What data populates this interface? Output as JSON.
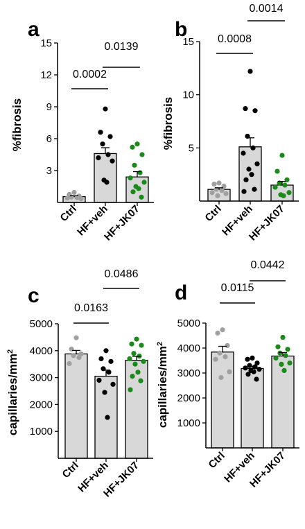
{
  "colors": {
    "bar_fill": "#d8d8d8",
    "axis": "#000000",
    "Ctrl": "#a0a0a0",
    "HF+veh": "#000000",
    "HF+JK07": "#1a8a1a"
  },
  "chart_data": [
    {
      "panel": "a",
      "type": "bar",
      "ylabel": "%fibrosis",
      "ylim": [
        0,
        15
      ],
      "yticks": [
        "3",
        "6",
        "9",
        "12",
        "15"
      ],
      "categories": [
        "Ctrl",
        "HF+veh",
        "HF+JK07"
      ],
      "means": [
        0.55,
        4.6,
        2.4
      ],
      "sem": [
        0.08,
        0.55,
        0.5
      ],
      "points": [
        [
          0.95,
          0.75,
          0.6,
          0.5,
          0.45,
          0.4,
          0.35
        ],
        [
          8.8,
          6.6,
          6.2,
          5.5,
          4.5,
          4.2,
          3.9,
          2.1,
          1.9
        ],
        [
          5.5,
          5.2,
          4.5,
          3.5,
          2.8,
          2.3,
          1.9,
          1.5,
          1.3,
          1.0,
          0.5
        ]
      ],
      "comparisons": [
        {
          "groups": [
            "Ctrl",
            "HF+veh"
          ],
          "p": "0.0002"
        },
        {
          "groups": [
            "HF+veh",
            "HF+JK07"
          ],
          "p": "0.0139"
        }
      ]
    },
    {
      "panel": "b",
      "type": "bar",
      "ylabel": "%fibrosis",
      "ylim": [
        0,
        15
      ],
      "yticks": [
        "5",
        "10",
        "15"
      ],
      "categories": [
        "Ctrl",
        "HF+veh",
        "HF+JK07"
      ],
      "means": [
        1.1,
        5.1,
        1.5
      ],
      "sem": [
        0.15,
        0.85,
        0.35
      ],
      "points": [
        [
          1.7,
          1.6,
          1.4,
          1.1,
          1.0,
          0.8,
          0.7,
          0.5
        ],
        [
          12.2,
          8.7,
          8.5,
          6.1,
          5.0,
          4.5,
          3.5,
          3.0,
          2.5,
          2.0,
          1.1,
          0.9
        ],
        [
          4.3,
          2.8,
          2.0,
          1.7,
          1.5,
          1.3,
          0.8,
          0.6,
          0.5
        ]
      ],
      "comparisons": [
        {
          "groups": [
            "Ctrl",
            "HF+veh"
          ],
          "p": "0.0008"
        },
        {
          "groups": [
            "HF+veh",
            "HF+JK07"
          ],
          "p": "0.0014"
        }
      ]
    },
    {
      "panel": "c",
      "type": "bar",
      "ylabel": "capillaries/mm",
      "ylabel_sup": "2",
      "ylim": [
        0,
        5000
      ],
      "yticks": [
        "1000",
        "2000",
        "3000",
        "4000",
        "5000"
      ],
      "categories": [
        "Ctrl",
        "HF+veh",
        "HF+JK07"
      ],
      "means": [
        3880,
        3050,
        3640
      ],
      "sem": [
        130,
        230,
        150
      ],
      "points": [
        [
          4480,
          4060,
          3880,
          3820,
          3750,
          3520
        ],
        [
          4000,
          3700,
          3600,
          3330,
          3200,
          2900,
          2750,
          2450,
          1520
        ],
        [
          4430,
          4250,
          4200,
          3900,
          3800,
          3700,
          3600,
          3500,
          3200,
          3050,
          2880,
          2550
        ]
      ],
      "comparisons": [
        {
          "groups": [
            "Ctrl",
            "HF+veh"
          ],
          "p": "0.0163"
        },
        {
          "groups": [
            "HF+veh",
            "HF+JK07"
          ],
          "p": "0.0486"
        }
      ]
    },
    {
      "panel": "d",
      "type": "bar",
      "ylabel": "capillaries/mm",
      "ylabel_sup": "2",
      "ylim": [
        0,
        5000
      ],
      "yticks": [
        "1000",
        "2000",
        "3000",
        "4000",
        "5000"
      ],
      "categories": [
        "Ctrl",
        "HF+veh",
        "HF+JK07"
      ],
      "means": [
        3840,
        3180,
        3680
      ],
      "sem": [
        230,
        95,
        140
      ],
      "points": [
        [
          4730,
          4600,
          4100,
          3800,
          3650,
          3550,
          3050,
          2820
        ],
        [
          3600,
          3550,
          3400,
          3300,
          3250,
          3200,
          3150,
          3100,
          3050,
          2950,
          2750
        ],
        [
          4430,
          4050,
          3950,
          3800,
          3700,
          3600,
          3400,
          3350,
          3100
        ]
      ],
      "comparisons": [
        {
          "groups": [
            "Ctrl",
            "HF+veh"
          ],
          "p": "0.0115"
        },
        {
          "groups": [
            "HF+veh",
            "HF+JK07"
          ],
          "p": "0.0442"
        }
      ]
    }
  ]
}
